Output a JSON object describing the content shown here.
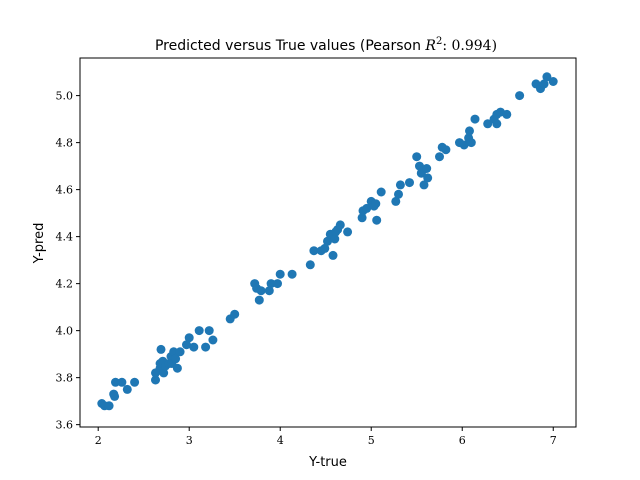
{
  "chart_data": {
    "type": "scatter",
    "title_prefix": "Predicted versus True values (Pearson ",
    "title_var": "R",
    "title_sup": "2",
    "title_suffix": ": 0.994)",
    "xlabel": "Y-true",
    "ylabel": "Y-pred",
    "xlim": [
      1.8,
      7.25
    ],
    "ylim": [
      3.59,
      5.16
    ],
    "xticks": [
      2,
      3,
      4,
      5,
      6,
      7
    ],
    "xtick_labels": [
      "2",
      "3",
      "4",
      "5",
      "6",
      "7"
    ],
    "yticks": [
      3.6,
      3.8,
      4.0,
      4.2,
      4.4,
      4.6,
      4.8,
      5.0
    ],
    "ytick_labels": [
      "3.6",
      "3.8",
      "4.0",
      "4.2",
      "4.4",
      "4.6",
      "4.8",
      "5.0"
    ],
    "grid": false,
    "point_color": "#1f77b4",
    "points": [
      [
        2.04,
        3.69
      ],
      [
        2.07,
        3.68
      ],
      [
        2.12,
        3.68
      ],
      [
        2.17,
        3.73
      ],
      [
        2.18,
        3.72
      ],
      [
        2.19,
        3.78
      ],
      [
        2.26,
        3.78
      ],
      [
        2.32,
        3.75
      ],
      [
        2.4,
        3.78
      ],
      [
        2.63,
        3.79
      ],
      [
        2.63,
        3.82
      ],
      [
        2.68,
        3.84
      ],
      [
        2.68,
        3.86
      ],
      [
        2.69,
        3.92
      ],
      [
        2.71,
        3.87
      ],
      [
        2.72,
        3.82
      ],
      [
        2.74,
        3.85
      ],
      [
        2.78,
        3.86
      ],
      [
        2.8,
        3.89
      ],
      [
        2.81,
        3.86
      ],
      [
        2.83,
        3.91
      ],
      [
        2.85,
        3.88
      ],
      [
        2.87,
        3.84
      ],
      [
        2.9,
        3.91
      ],
      [
        2.97,
        3.94
      ],
      [
        3.0,
        3.97
      ],
      [
        3.05,
        3.93
      ],
      [
        3.11,
        4.0
      ],
      [
        3.18,
        3.93
      ],
      [
        3.22,
        4.0
      ],
      [
        3.26,
        3.96
      ],
      [
        3.45,
        4.05
      ],
      [
        3.5,
        4.07
      ],
      [
        3.72,
        4.2
      ],
      [
        3.74,
        4.18
      ],
      [
        3.77,
        4.13
      ],
      [
        3.79,
        4.17
      ],
      [
        3.88,
        4.17
      ],
      [
        3.9,
        4.2
      ],
      [
        3.97,
        4.2
      ],
      [
        4.0,
        4.24
      ],
      [
        4.13,
        4.24
      ],
      [
        4.33,
        4.28
      ],
      [
        4.37,
        4.34
      ],
      [
        4.45,
        4.34
      ],
      [
        4.49,
        4.35
      ],
      [
        4.52,
        4.38
      ],
      [
        4.55,
        4.41
      ],
      [
        4.58,
        4.32
      ],
      [
        4.6,
        4.39
      ],
      [
        4.61,
        4.42
      ],
      [
        4.63,
        4.43
      ],
      [
        4.66,
        4.45
      ],
      [
        4.74,
        4.42
      ],
      [
        4.9,
        4.48
      ],
      [
        4.91,
        4.51
      ],
      [
        4.95,
        4.52
      ],
      [
        5.0,
        4.55
      ],
      [
        5.03,
        4.53
      ],
      [
        5.05,
        4.54
      ],
      [
        5.06,
        4.47
      ],
      [
        5.11,
        4.59
      ],
      [
        5.27,
        4.55
      ],
      [
        5.3,
        4.58
      ],
      [
        5.32,
        4.62
      ],
      [
        5.42,
        4.63
      ],
      [
        5.5,
        4.74
      ],
      [
        5.53,
        4.7
      ],
      [
        5.55,
        4.67
      ],
      [
        5.56,
        4.68
      ],
      [
        5.58,
        4.62
      ],
      [
        5.62,
        4.65
      ],
      [
        5.61,
        4.69
      ],
      [
        5.75,
        4.74
      ],
      [
        5.78,
        4.78
      ],
      [
        5.82,
        4.77
      ],
      [
        5.97,
        4.8
      ],
      [
        6.02,
        4.79
      ],
      [
        6.07,
        4.82
      ],
      [
        6.08,
        4.85
      ],
      [
        6.1,
        4.8
      ],
      [
        6.14,
        4.9
      ],
      [
        6.28,
        4.88
      ],
      [
        6.35,
        4.9
      ],
      [
        6.38,
        4.92
      ],
      [
        6.38,
        4.88
      ],
      [
        6.42,
        4.93
      ],
      [
        6.49,
        4.92
      ],
      [
        6.63,
        5.0
      ],
      [
        6.81,
        5.05
      ],
      [
        6.86,
        5.03
      ],
      [
        6.9,
        5.05
      ],
      [
        6.93,
        5.08
      ],
      [
        7.0,
        5.06
      ]
    ]
  }
}
